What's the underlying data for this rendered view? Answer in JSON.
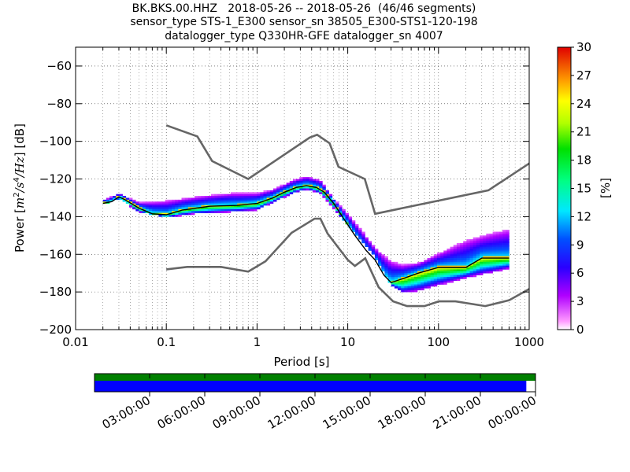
{
  "chart_data": [
    {
      "type": "heatmap",
      "title_lines": [
        "BK.BKS.00.HHZ   2018-05-26 -- 2018-05-26  (46/46 segments)",
        "sensor_type STS-1_E300 sensor_sn 38505_E300-STS1-120-198",
        "datalogger_type Q330HR-GFE datalogger_sn 4007"
      ],
      "xlabel": "Period [s]",
      "ylabel_prefix": "Power [",
      "ylabel_unit_html": "<tspan font-style=\"italic\" font-family=\"DejaVu Serif, serif\">m</tspan><tspan dy=\"-6\" font-size=\"10\">2</tspan><tspan dy=\"6\" font-family=\"DejaVu Serif, serif\" font-style=\"italic\">/s</tspan><tspan dy=\"-6\" font-size=\"10\">4</tspan><tspan dy=\"6\" font-family=\"DejaVu Serif, serif\" font-style=\"italic\">/Hz</tspan>",
      "ylabel_suffix": "] [dB]",
      "xscale": "log",
      "xlim": [
        0.01,
        1000
      ],
      "ylim": [
        -200,
        -50
      ],
      "xticks": [
        0.01,
        0.1,
        1,
        10,
        100,
        1000
      ],
      "xtick_labels": [
        "0.01",
        "0.1",
        "1",
        "10",
        "100",
        "1000"
      ],
      "yticks": [
        -200,
        -180,
        -160,
        -140,
        -120,
        -100,
        -80,
        -60
      ],
      "ytick_labels": [
        "−200",
        "−180",
        "−160",
        "−140",
        "−120",
        "−100",
        "−80",
        "−60"
      ],
      "grid": true,
      "colorbar": {
        "label": "[%]",
        "range": [
          0,
          30
        ],
        "ticks": [
          "0",
          "3",
          "6",
          "9",
          "12",
          "15",
          "18",
          "21",
          "24",
          "27",
          "30"
        ],
        "colormap": "pqlx"
      },
      "noise_model_high": {
        "x": [
          0.1,
          0.22,
          0.32,
          0.8,
          3.8,
          4.6,
          6.3,
          7.9,
          15.4,
          20,
          354.8,
          10000
        ],
        "y": [
          -91.5,
          -97.4,
          -110.5,
          -120,
          -98,
          -96.5,
          -101,
          -113.5,
          -120,
          -138.5,
          -126,
          -80
        ]
      },
      "noise_model_low": {
        "x": [
          0.1,
          0.17,
          0.4,
          0.8,
          1.24,
          2.4,
          4.3,
          5,
          6,
          10,
          12,
          15.6,
          21.9,
          31.6,
          45,
          70,
          101,
          154,
          328,
          600,
          10000
        ],
        "y": [
          -168,
          -166.7,
          -166.7,
          -169.2,
          -163.7,
          -148.6,
          -141.1,
          -141.1,
          -149,
          -163,
          -166.2,
          -162.1,
          -177.5,
          -185,
          -187.5,
          -187.5,
          -185,
          -185,
          -187.5,
          -184.4,
          -151.5
        ]
      },
      "mean_curve": {
        "x": [
          0.02,
          0.025,
          0.03,
          0.035,
          0.05,
          0.07,
          0.1,
          0.15,
          0.3,
          0.6,
          1,
          1.5,
          2,
          2.7,
          3.5,
          4.5,
          5.5,
          7,
          9,
          12,
          16,
          20,
          25,
          30,
          40,
          60,
          100,
          200,
          300,
          600
        ],
        "y": [
          -133,
          -132,
          -129.5,
          -131,
          -135.5,
          -138.5,
          -139,
          -136.5,
          -134.5,
          -134,
          -133,
          -130,
          -127,
          -124.5,
          -123.5,
          -124.5,
          -127,
          -133,
          -141,
          -150,
          -158,
          -163,
          -171,
          -175,
          -173,
          -170,
          -167,
          -167,
          -162,
          -162
        ]
      },
      "percentile_spread": {
        "x": [
          0.02,
          0.03,
          0.05,
          0.1,
          0.2,
          0.5,
          1,
          1.5,
          2.5,
          3.5,
          5,
          7,
          10,
          15,
          20,
          30,
          40,
          60,
          100,
          200,
          400,
          600
        ],
        "lo": [
          -134,
          -131,
          -138,
          -141,
          -139,
          -138,
          -137,
          -133,
          -128,
          -126,
          -128,
          -136,
          -145,
          -155,
          -162,
          -177,
          -181,
          -180,
          -177,
          -173,
          -170,
          -168
        ],
        "hi": [
          -132,
          -128,
          -133,
          -132,
          -130,
          -128,
          -128,
          -126,
          -121,
          -119,
          -121,
          -131,
          -139,
          -149,
          -157,
          -164,
          -166,
          -165,
          -160,
          -153,
          -149,
          -147
        ]
      }
    },
    {
      "type": "timeline",
      "tick_labels": [
        "03:00:00",
        "06:00:00",
        "09:00:00",
        "12:00:00",
        "15:00:00",
        "18:00:00",
        "21:00:00",
        "00:00:00"
      ],
      "tick_hours": [
        3,
        6,
        9,
        12,
        15,
        18,
        21,
        24
      ],
      "range_hours": [
        0,
        24
      ],
      "data_coverage_end_hours": 24,
      "psd_coverage_end_hours": 23.5,
      "colors": {
        "data": "#008000",
        "psd": "#0000ff"
      }
    }
  ]
}
